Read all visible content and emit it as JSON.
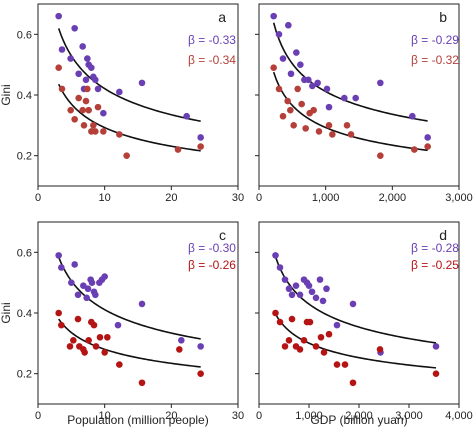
{
  "chart_data": [
    {
      "type": "scatter",
      "panel_label": "a",
      "ylabel": "Gini",
      "xlabel": "",
      "xlim": [
        0,
        30
      ],
      "ylim": [
        0.1,
        0.7
      ],
      "x_ticks": [
        0,
        10,
        20,
        30
      ],
      "x_tick_labels": [
        "0",
        "10",
        "20",
        "30"
      ],
      "y_ticks": [
        0.2,
        0.4,
        0.6
      ],
      "y_tick_labels": [
        "0.2",
        "0.4",
        "0.6"
      ],
      "series": [
        {
          "legend": "β = -0.33",
          "color": "#6a3fb4",
          "points": [
            [
              3.1,
              0.66
            ],
            [
              3.6,
              0.55
            ],
            [
              4.9,
              0.52
            ],
            [
              5.5,
              0.62
            ],
            [
              6.1,
              0.47
            ],
            [
              6.7,
              0.56
            ],
            [
              6.9,
              0.42
            ],
            [
              7.2,
              0.45
            ],
            [
              7.4,
              0.52
            ],
            [
              7.6,
              0.5
            ],
            [
              8.0,
              0.49
            ],
            [
              8.3,
              0.46
            ],
            [
              8.6,
              0.45
            ],
            [
              9.0,
              0.42
            ],
            [
              9.8,
              0.34
            ],
            [
              12.2,
              0.41
            ],
            [
              15.6,
              0.44
            ],
            [
              22.3,
              0.33
            ],
            [
              24.4,
              0.26
            ]
          ],
          "fit_a": 0.9,
          "fit_beta": -0.33
        },
        {
          "legend": "β = -0.34",
          "color": "#b5403a",
          "points": [
            [
              3.1,
              0.49
            ],
            [
              3.6,
              0.42
            ],
            [
              4.9,
              0.35
            ],
            [
              5.5,
              0.32
            ],
            [
              6.1,
              0.39
            ],
            [
              6.7,
              0.35
            ],
            [
              6.9,
              0.3
            ],
            [
              7.2,
              0.38
            ],
            [
              7.4,
              0.42
            ],
            [
              7.6,
              0.35
            ],
            [
              8.0,
              0.28
            ],
            [
              8.3,
              0.3
            ],
            [
              8.6,
              0.28
            ],
            [
              9.0,
              0.36
            ],
            [
              9.8,
              0.28
            ],
            [
              12.2,
              0.27
            ],
            [
              13.3,
              0.2
            ],
            [
              21.0,
              0.22
            ],
            [
              24.4,
              0.23
            ]
          ],
          "fit_a": 0.64,
          "fit_beta": -0.34
        }
      ]
    },
    {
      "type": "scatter",
      "panel_label": "b",
      "ylabel": "",
      "xlabel": "",
      "xlim": [
        0,
        3000
      ],
      "ylim": [
        0.1,
        0.7
      ],
      "x_ticks": [
        0,
        1000,
        2000,
        3000
      ],
      "x_tick_labels": [
        "0",
        "1,000",
        "2,000",
        "3,000"
      ],
      "y_ticks": [
        0.2,
        0.4,
        0.6
      ],
      "y_tick_labels": [
        "",
        "",
        ""
      ],
      "series": [
        {
          "legend": "β = -0.29",
          "color": "#6a3fb4",
          "points": [
            [
              220,
              0.66
            ],
            [
              300,
              0.6
            ],
            [
              360,
              0.52
            ],
            [
              440,
              0.63
            ],
            [
              480,
              0.47
            ],
            [
              560,
              0.54
            ],
            [
              620,
              0.5
            ],
            [
              680,
              0.45
            ],
            [
              740,
              0.45
            ],
            [
              800,
              0.43
            ],
            [
              880,
              0.44
            ],
            [
              1020,
              0.42
            ],
            [
              1050,
              0.36
            ],
            [
              1280,
              0.39
            ],
            [
              1450,
              0.39
            ],
            [
              1820,
              0.44
            ],
            [
              2300,
              0.33
            ],
            [
              2530,
              0.26
            ]
          ],
          "fit_a": 3.05,
          "fit_beta": -0.29
        },
        {
          "legend": "β = -0.32",
          "color": "#b5403a",
          "points": [
            [
              220,
              0.49
            ],
            [
              300,
              0.42
            ],
            [
              360,
              0.33
            ],
            [
              430,
              0.38
            ],
            [
              470,
              0.35
            ],
            [
              520,
              0.3
            ],
            [
              580,
              0.42
            ],
            [
              640,
              0.37
            ],
            [
              700,
              0.29
            ],
            [
              760,
              0.34
            ],
            [
              820,
              0.35
            ],
            [
              900,
              0.28
            ],
            [
              1050,
              0.3
            ],
            [
              1100,
              0.27
            ],
            [
              1320,
              0.3
            ],
            [
              1380,
              0.27
            ],
            [
              1820,
              0.2
            ],
            [
              2330,
              0.22
            ],
            [
              2530,
              0.23
            ]
          ],
          "fit_a": 2.67,
          "fit_beta": -0.32
        }
      ]
    },
    {
      "type": "scatter",
      "panel_label": "c",
      "ylabel": "Gini",
      "xlabel": "Population (million people)",
      "xlim": [
        0,
        30
      ],
      "ylim": [
        0.1,
        0.7
      ],
      "x_ticks": [
        0,
        10,
        20,
        30
      ],
      "x_tick_labels": [
        "0",
        "10",
        "20",
        "30"
      ],
      "y_ticks": [
        0.2,
        0.4,
        0.6
      ],
      "y_tick_labels": [
        "0.2",
        "0.4",
        "0.6"
      ],
      "series": [
        {
          "legend": "β = -0.30",
          "color": "#6a3fb4",
          "points": [
            [
              3.1,
              0.59
            ],
            [
              3.5,
              0.55
            ],
            [
              5.0,
              0.5
            ],
            [
              5.5,
              0.56
            ],
            [
              6.0,
              0.46
            ],
            [
              6.8,
              0.49
            ],
            [
              7.3,
              0.45
            ],
            [
              7.5,
              0.48
            ],
            [
              7.9,
              0.51
            ],
            [
              8.1,
              0.5
            ],
            [
              8.4,
              0.47
            ],
            [
              8.6,
              0.46
            ],
            [
              9.2,
              0.5
            ],
            [
              9.6,
              0.51
            ],
            [
              10.0,
              0.52
            ],
            [
              12.0,
              0.36
            ],
            [
              15.6,
              0.43
            ],
            [
              21.5,
              0.31
            ],
            [
              24.4,
              0.29
            ]
          ],
          "fit_a": 0.82,
          "fit_beta": -0.3
        },
        {
          "legend": "β = -0.26",
          "color": "#b51414",
          "points": [
            [
              3.1,
              0.4
            ],
            [
              3.5,
              0.36
            ],
            [
              4.8,
              0.29
            ],
            [
              5.3,
              0.31
            ],
            [
              6.0,
              0.38
            ],
            [
              6.2,
              0.29
            ],
            [
              6.8,
              0.28
            ],
            [
              7.0,
              0.27
            ],
            [
              7.6,
              0.31
            ],
            [
              8.0,
              0.37
            ],
            [
              8.4,
              0.36
            ],
            [
              8.7,
              0.29
            ],
            [
              9.3,
              0.32
            ],
            [
              10.0,
              0.27
            ],
            [
              10.4,
              0.32
            ],
            [
              12.2,
              0.23
            ],
            [
              15.6,
              0.17
            ],
            [
              21.2,
              0.28
            ],
            [
              24.4,
              0.2
            ]
          ],
          "fit_a": 0.51,
          "fit_beta": -0.26
        }
      ]
    },
    {
      "type": "scatter",
      "panel_label": "d",
      "ylabel": "",
      "xlabel": "GDP (billion yuan)",
      "xlim": [
        0,
        4000
      ],
      "ylim": [
        0.1,
        0.7
      ],
      "x_ticks": [
        0,
        1000,
        2000,
        3000,
        4000
      ],
      "x_tick_labels": [
        "0",
        "1,000",
        "2,000",
        "3,000",
        "4,000"
      ],
      "y_ticks": [
        0.2,
        0.4,
        0.6
      ],
      "y_tick_labels": [
        "",
        "",
        ""
      ],
      "series": [
        {
          "legend": "β = -0.28",
          "color": "#6a3fb4",
          "points": [
            [
              330,
              0.59
            ],
            [
              420,
              0.55
            ],
            [
              520,
              0.51
            ],
            [
              600,
              0.48
            ],
            [
              660,
              0.46
            ],
            [
              740,
              0.49
            ],
            [
              820,
              0.46
            ],
            [
              900,
              0.51
            ],
            [
              960,
              0.5
            ],
            [
              1000,
              0.49
            ],
            [
              1060,
              0.47
            ],
            [
              1140,
              0.45
            ],
            [
              1220,
              0.51
            ],
            [
              1280,
              0.44
            ],
            [
              1350,
              0.48
            ],
            [
              1560,
              0.36
            ],
            [
              1880,
              0.43
            ],
            [
              2430,
              0.27
            ],
            [
              3540,
              0.29
            ]
          ],
          "fit_a": 2.97,
          "fit_beta": -0.28
        },
        {
          "legend": "β = -0.25",
          "color": "#b51414",
          "points": [
            [
              330,
              0.4
            ],
            [
              420,
              0.37
            ],
            [
              520,
              0.29
            ],
            [
              600,
              0.31
            ],
            [
              660,
              0.38
            ],
            [
              740,
              0.29
            ],
            [
              820,
              0.28
            ],
            [
              900,
              0.31
            ],
            [
              960,
              0.37
            ],
            [
              1020,
              0.37
            ],
            [
              1140,
              0.29
            ],
            [
              1240,
              0.32
            ],
            [
              1300,
              0.27
            ],
            [
              1400,
              0.33
            ],
            [
              1560,
              0.23
            ],
            [
              1720,
              0.23
            ],
            [
              1880,
              0.17
            ],
            [
              2420,
              0.28
            ],
            [
              3540,
              0.2
            ]
          ],
          "fit_a": 1.69,
          "fit_beta": -0.25
        }
      ]
    }
  ]
}
